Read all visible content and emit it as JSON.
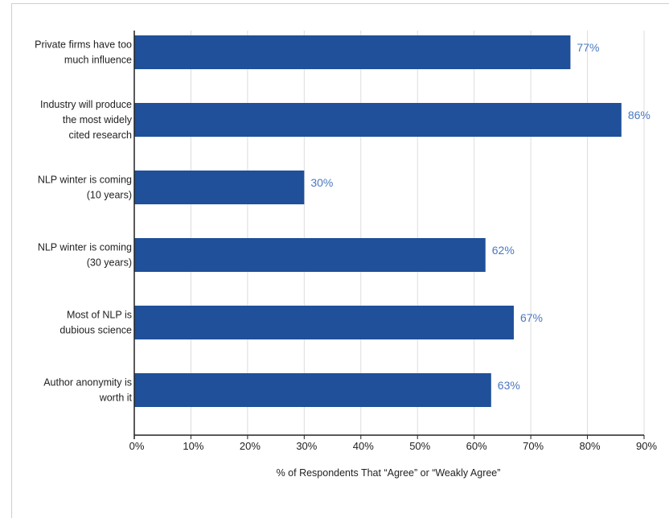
{
  "chart_data": {
    "type": "bar",
    "orientation": "horizontal",
    "categories": [
      [
        "Private firms have too",
        "much influence"
      ],
      [
        "Industry will produce",
        "the most widely",
        "cited research"
      ],
      [
        "NLP winter is coming",
        "(10 years)"
      ],
      [
        "NLP winter is coming",
        "(30 years)"
      ],
      [
        "Most of NLP is",
        "dubious science"
      ],
      [
        "Author anonymity is",
        "worth it"
      ]
    ],
    "values": [
      77,
      86,
      30,
      62,
      67,
      63
    ],
    "value_labels": [
      "77%",
      "86%",
      "30%",
      "62%",
      "67%",
      "63%"
    ],
    "xlabel": "% of Respondents That “Agree” or “Weakly Agree”",
    "xlim": [
      0,
      90
    ],
    "xticks": [
      0,
      10,
      20,
      30,
      40,
      50,
      60,
      70,
      80,
      90
    ],
    "xtick_labels": [
      "0%",
      "10%",
      "20%",
      "30%",
      "40%",
      "50%",
      "60%",
      "70%",
      "80%",
      "90%"
    ],
    "grid": true,
    "colors": {
      "bar": "#1f5099",
      "value_label": "#4a78bf",
      "grid": "#dddddd",
      "axis": "#222222"
    }
  }
}
